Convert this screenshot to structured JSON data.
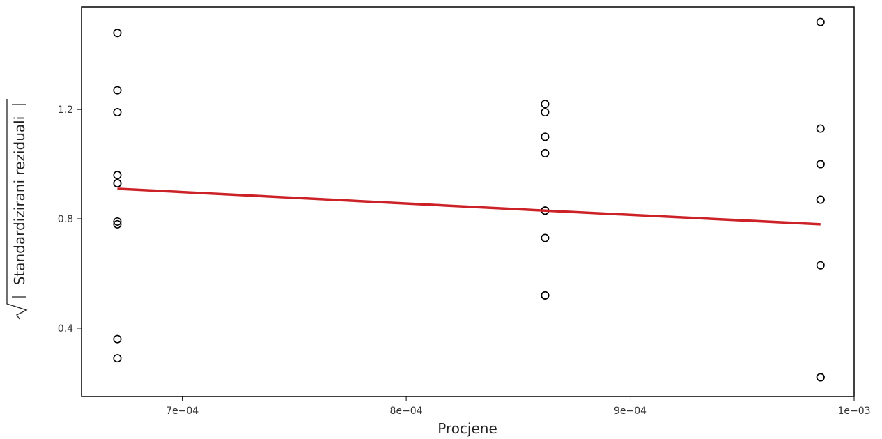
{
  "chart_data": {
    "type": "scatter",
    "title": "",
    "xlabel": "Procjene",
    "ylabel": "Standardizirani reziduali",
    "xlim": [
      0.000655,
      0.001
    ],
    "ylim": [
      0.15,
      1.575
    ],
    "x_ticks": [
      0.0007,
      0.0008,
      0.0009,
      0.001
    ],
    "x_tick_labels": [
      "7e−04",
      "8e−04",
      "9e−04",
      "1e−03"
    ],
    "y_ticks": [
      0.4,
      0.8,
      1.2
    ],
    "y_tick_labels": [
      "0.4",
      "0.8",
      "1.2"
    ],
    "grid": false,
    "points": [
      {
        "x": 0.000671,
        "y": 1.48
      },
      {
        "x": 0.000671,
        "y": 1.27
      },
      {
        "x": 0.000671,
        "y": 1.19
      },
      {
        "x": 0.000671,
        "y": 0.96
      },
      {
        "x": 0.000671,
        "y": 0.93
      },
      {
        "x": 0.000671,
        "y": 0.93
      },
      {
        "x": 0.000671,
        "y": 0.79
      },
      {
        "x": 0.000671,
        "y": 0.78
      },
      {
        "x": 0.000671,
        "y": 0.36
      },
      {
        "x": 0.000671,
        "y": 0.29
      },
      {
        "x": 0.000862,
        "y": 1.22
      },
      {
        "x": 0.000862,
        "y": 1.19
      },
      {
        "x": 0.000862,
        "y": 1.1
      },
      {
        "x": 0.000862,
        "y": 1.04
      },
      {
        "x": 0.000862,
        "y": 0.83
      },
      {
        "x": 0.000862,
        "y": 0.83
      },
      {
        "x": 0.000862,
        "y": 0.73
      },
      {
        "x": 0.000862,
        "y": 0.52
      },
      {
        "x": 0.000862,
        "y": 0.52
      },
      {
        "x": 0.000985,
        "y": 1.52
      },
      {
        "x": 0.000985,
        "y": 1.13
      },
      {
        "x": 0.000985,
        "y": 1.0
      },
      {
        "x": 0.000985,
        "y": 1.0
      },
      {
        "x": 0.000985,
        "y": 0.87
      },
      {
        "x": 0.000985,
        "y": 0.87
      },
      {
        "x": 0.000985,
        "y": 0.63
      },
      {
        "x": 0.000985,
        "y": 0.22
      },
      {
        "x": 0.000985,
        "y": 0.22
      }
    ],
    "smooth_line": {
      "color": "#cc2127",
      "points": [
        {
          "x": 0.000671,
          "y": 0.91
        },
        {
          "x": 0.000862,
          "y": 0.83
        },
        {
          "x": 0.000985,
          "y": 0.78
        }
      ]
    },
    "point_style": {
      "shape": "open-circle",
      "color": "#000000"
    }
  }
}
